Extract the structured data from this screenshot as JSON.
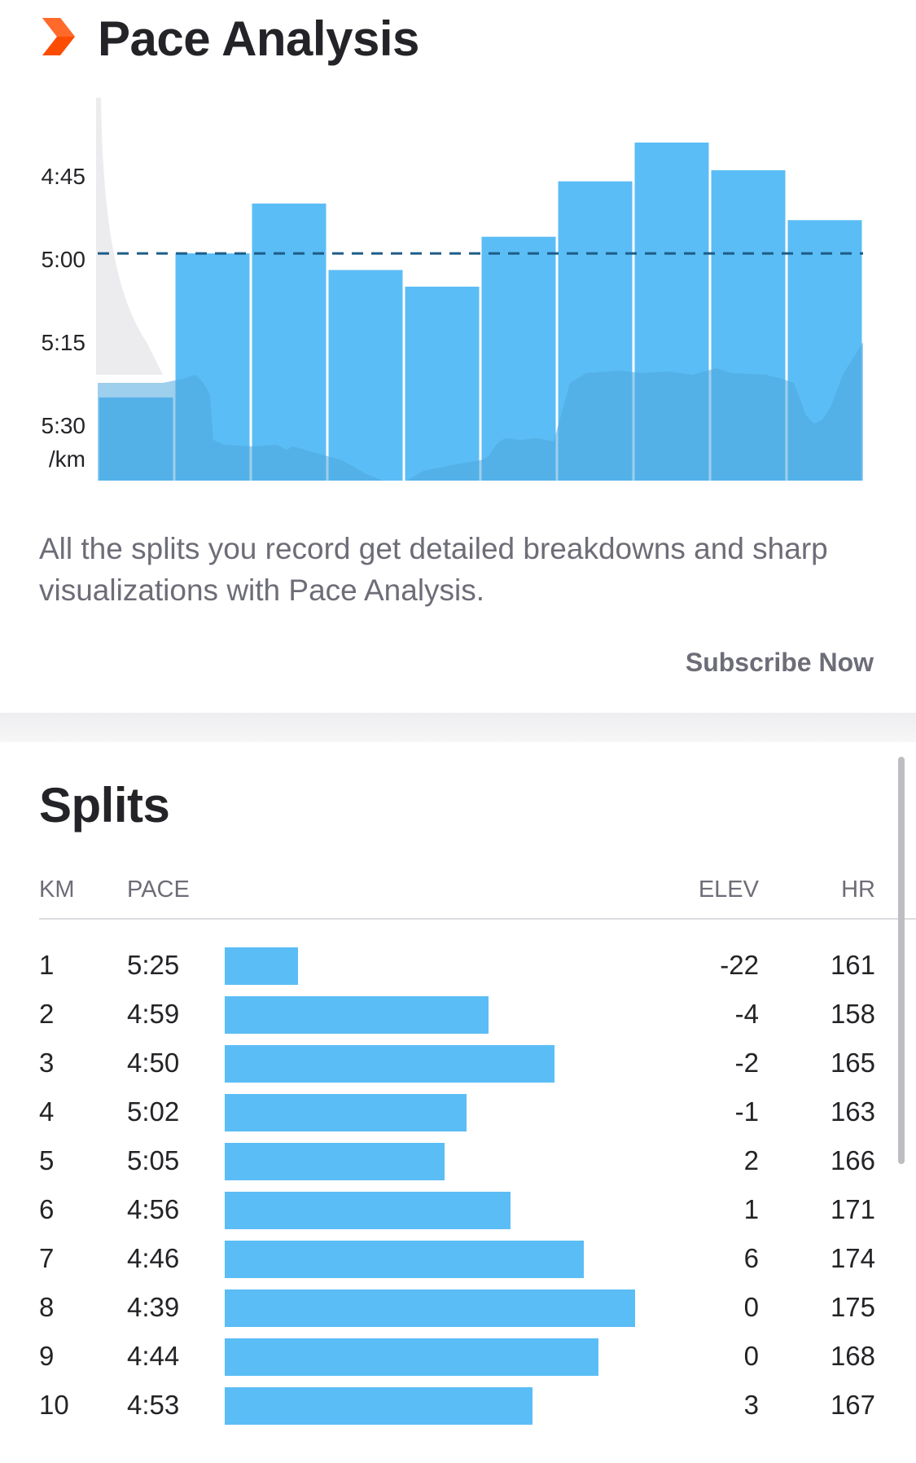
{
  "header": {
    "title": "Pace Analysis",
    "logo_icon": "chevron-logo-icon",
    "accent_color": "#fc4c02"
  },
  "chart_data": {
    "type": "bar",
    "categories": [
      "1",
      "2",
      "3",
      "4",
      "5",
      "6",
      "7",
      "8",
      "9",
      "10"
    ],
    "values": [
      "5:25",
      "4:59",
      "4:50",
      "5:02",
      "5:05",
      "4:56",
      "4:46",
      "4:39",
      "4:44",
      "4:53"
    ],
    "values_seconds_per_km": [
      325,
      299,
      290,
      302,
      305,
      296,
      286,
      279,
      284,
      293
    ],
    "y_tick_labels": [
      "4:45",
      "5:00",
      "5:15",
      "5:30"
    ],
    "y_tick_seconds": [
      285,
      300,
      315,
      330
    ],
    "y_unit_label": "/km",
    "ylim_seconds": [
      340,
      279
    ],
    "y_axis_inverted": true,
    "average_pace_seconds": 299,
    "average_line_style": "dashed",
    "bar_color": "#5bbdf5",
    "overlay_area": "elevation / heart-rate profile, lighter and darker blue",
    "grid": false
  },
  "description": "All the splits you record get detailed breakdowns and sharp visualizations with Pace Analysis.",
  "subscribe_label": "Subscribe Now",
  "splits": {
    "title": "Splits",
    "columns": {
      "km": "KM",
      "pace": "PACE",
      "elev": "ELEV",
      "hr": "HR"
    },
    "bar_color": "#5bbdf5",
    "rows": [
      {
        "km": "1",
        "pace": "5:25",
        "pace_seconds": 325,
        "elev": "-22",
        "hr": "161"
      },
      {
        "km": "2",
        "pace": "4:59",
        "pace_seconds": 299,
        "elev": "-4",
        "hr": "158"
      },
      {
        "km": "3",
        "pace": "4:50",
        "pace_seconds": 290,
        "elev": "-2",
        "hr": "165"
      },
      {
        "km": "4",
        "pace": "5:02",
        "pace_seconds": 302,
        "elev": "-1",
        "hr": "163"
      },
      {
        "km": "5",
        "pace": "5:05",
        "pace_seconds": 305,
        "elev": "2",
        "hr": "166"
      },
      {
        "km": "6",
        "pace": "4:56",
        "pace_seconds": 296,
        "elev": "1",
        "hr": "171"
      },
      {
        "km": "7",
        "pace": "4:46",
        "pace_seconds": 286,
        "elev": "6",
        "hr": "174"
      },
      {
        "km": "8",
        "pace": "4:39",
        "pace_seconds": 279,
        "elev": "0",
        "hr": "175"
      },
      {
        "km": "9",
        "pace": "4:44",
        "pace_seconds": 284,
        "elev": "0",
        "hr": "168"
      },
      {
        "km": "10",
        "pace": "4:53",
        "pace_seconds": 293,
        "elev": "3",
        "hr": "167"
      }
    ]
  }
}
